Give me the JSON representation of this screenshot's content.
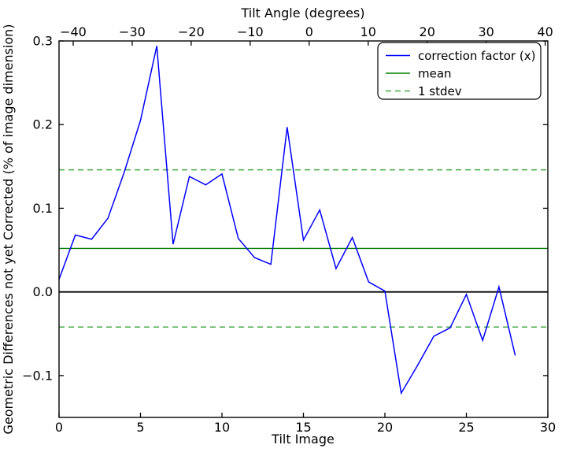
{
  "figure": {
    "background": "#ffffff",
    "plot_border_color": "#000000"
  },
  "chart_data": {
    "type": "line",
    "top_axis": {
      "label": "Tilt Angle (degrees)",
      "min": -42.4,
      "max": 40.45,
      "ticks": [
        -40,
        -30,
        -20,
        -10,
        0,
        10,
        20,
        30,
        40
      ],
      "tick_labels": [
        "−40",
        "−30",
        "−20",
        "−10",
        "0",
        "10",
        "20",
        "30",
        "40"
      ]
    },
    "bottom_axis": {
      "label": "Tilt Image",
      "min": 0,
      "max": 30,
      "ticks": [
        0,
        5,
        10,
        15,
        20,
        25,
        30
      ],
      "tick_labels": [
        "0",
        "5",
        "10",
        "15",
        "20",
        "25",
        "30"
      ]
    },
    "y_axis": {
      "label": "Geometric Differences not yet Corrected (% of image dimension)",
      "min": -0.15,
      "max": 0.3,
      "ticks": [
        -0.1,
        0.0,
        0.1,
        0.2,
        0.3
      ],
      "tick_labels": [
        "−0.1",
        "0.0",
        "0.1",
        "0.2",
        "0.3"
      ]
    },
    "grid": false,
    "series": [
      {
        "name": "correction factor (x)",
        "color": "#0000ff",
        "style": "solid",
        "x": [
          0,
          1,
          2,
          3,
          4,
          5,
          6,
          7,
          8,
          9,
          10,
          11,
          12,
          13,
          14,
          15,
          16,
          17,
          18,
          19,
          20,
          21,
          22,
          23,
          24,
          25,
          26,
          27,
          28
        ],
        "values": [
          0.015,
          0.068,
          0.063,
          0.088,
          0.143,
          0.205,
          0.294,
          0.057,
          0.138,
          0.128,
          0.141,
          0.064,
          0.041,
          0.033,
          0.197,
          0.062,
          0.098,
          0.028,
          0.065,
          0.012,
          0.001,
          -0.121,
          -0.088,
          -0.053,
          -0.043,
          -0.003,
          -0.058,
          0.006,
          -0.076
        ]
      }
    ],
    "mean_line": {
      "name": "mean",
      "value": 0.052,
      "color": "#008000",
      "style": "solid"
    },
    "stdev_lines": {
      "name": "1 stdev",
      "values": [
        0.146,
        -0.042
      ],
      "color": "#44ab44",
      "style": "dashed"
    },
    "zero_line": {
      "value": 0.0,
      "color": "#000000"
    },
    "legend": {
      "position": "upper right",
      "items": [
        {
          "label": "correction factor (x)",
          "color": "#0000ff",
          "dash": "none"
        },
        {
          "label": "mean",
          "color": "#008000",
          "dash": "none"
        },
        {
          "label": "1 stdev",
          "color": "#44ab44",
          "dash": "7,5"
        }
      ]
    }
  }
}
